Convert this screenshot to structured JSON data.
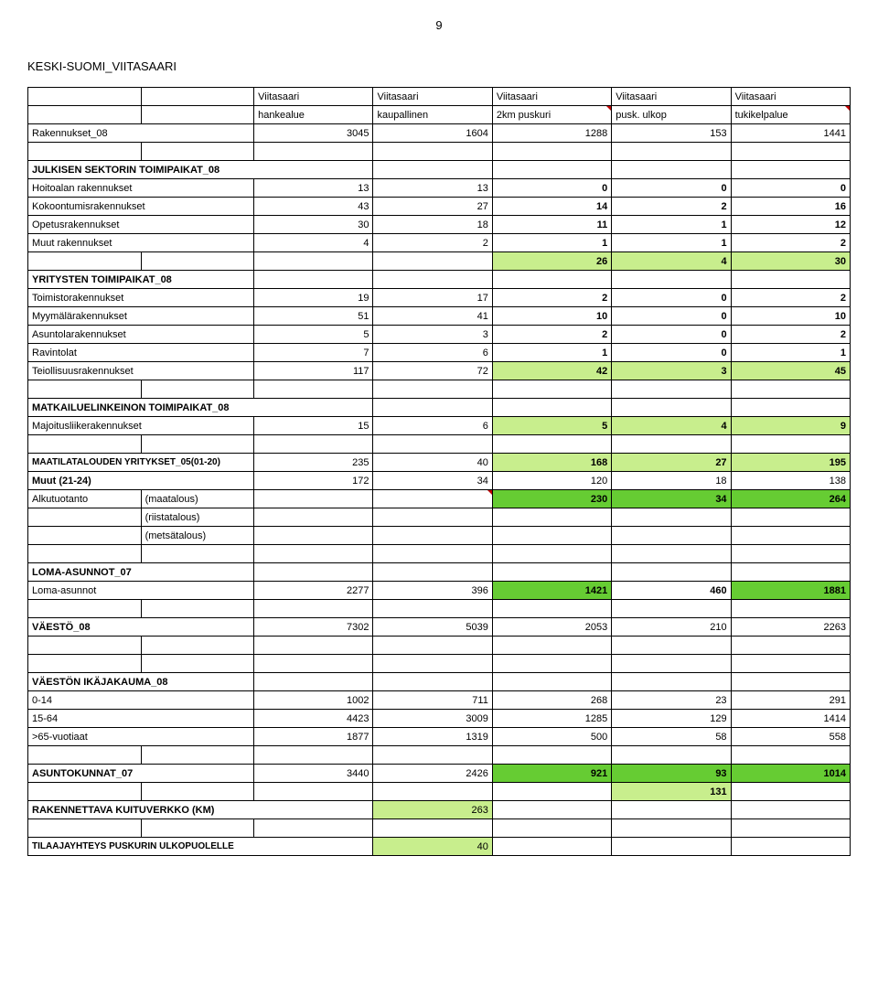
{
  "page_number": "9",
  "title": "KESKI-SUOMI_VIITASAARI",
  "headers": {
    "col3": "Viitasaari",
    "col4": "Viitasaari",
    "col5": "Viitasaari",
    "col6": "Viitasaari",
    "col7": "Viitasaari",
    "sub3": "hankealue",
    "sub4": "kaupallinen",
    "sub5": "2km puskuri",
    "sub6": "pusk. ulkop",
    "sub7": "tukikelpalue"
  },
  "rows": {
    "rakennukset08": {
      "label": "Rakennukset_08",
      "v": [
        "3045",
        "1604",
        "1288",
        "153",
        "1441"
      ]
    },
    "julkisen": "JULKISEN SEKTORIN TOIMIPAIKAT_08",
    "hoitoalan": {
      "label": "Hoitoalan rakennukset",
      "v": [
        "13",
        "13",
        "0",
        "0",
        "0"
      ]
    },
    "kokoontumis": {
      "label": "Kokoontumisrakennukset",
      "v": [
        "43",
        "27",
        "14",
        "2",
        "16"
      ]
    },
    "opetus": {
      "label": "Opetusrakennukset",
      "v": [
        "30",
        "18",
        "11",
        "1",
        "12"
      ]
    },
    "muutrak": {
      "label": "Muut rakennukset",
      "v": [
        "4",
        "2",
        "1",
        "1",
        "2"
      ]
    },
    "subtotal1": {
      "v": [
        "",
        "",
        "26",
        "4",
        "30"
      ]
    },
    "yritysten": "YRITYSTEN TOIMIPAIKAT_08",
    "toimisto": {
      "label": "Toimistorakennukset",
      "v": [
        "19",
        "17",
        "2",
        "0",
        "2"
      ]
    },
    "myymala": {
      "label": "Myymälärakennukset",
      "v": [
        "51",
        "41",
        "10",
        "0",
        "10"
      ]
    },
    "asuntola": {
      "label": "Asuntolarakennukset",
      "v": [
        "5",
        "3",
        "2",
        "0",
        "2"
      ]
    },
    "ravintolat": {
      "label": "Ravintolat",
      "v": [
        "7",
        "6",
        "1",
        "0",
        "1"
      ]
    },
    "teiollisuus": {
      "label": "Teiollisuusrakennukset",
      "v": [
        "117",
        "72",
        "42",
        "3",
        "45"
      ]
    },
    "matkailu": "MATKAILUELINKEINON TOIMIPAIKAT_08",
    "majoitus": {
      "label": "Majoitusliikerakennukset",
      "v": [
        "15",
        "6",
        "5",
        "4",
        "9"
      ]
    },
    "maatila": {
      "label": "MAATILATALOUDEN YRITYKSET_05(01-20)",
      "v": [
        "235",
        "40",
        "168",
        "27",
        "195"
      ]
    },
    "muut2124": {
      "label": "Muut (21-24)",
      "v": [
        "172",
        "34",
        "120",
        "18",
        "138"
      ]
    },
    "alkutuotanto": {
      "label": "Alkutuotanto",
      "sub": "(maatalous)",
      "v": [
        "",
        "",
        "230",
        "34",
        "264"
      ]
    },
    "riista": "(riistatalous)",
    "metsa": "(metsätalous)",
    "lomaasunnot07": "LOMA-ASUNNOT_07",
    "lomaasunnot": {
      "label": "Loma-asunnot",
      "v": [
        "2277",
        "396",
        "1421",
        "460",
        "1881"
      ]
    },
    "vaesto08": {
      "label": "VÄESTÖ_08",
      "v": [
        "7302",
        "5039",
        "2053",
        "210",
        "2263"
      ]
    },
    "ikajakauma": "VÄESTÖN IKÄJAKAUMA_08",
    "a0_14": {
      "label": "0-14",
      "v": [
        "1002",
        "711",
        "268",
        "23",
        "291"
      ]
    },
    "a15_64": {
      "label": "15-64",
      "v": [
        "4423",
        "3009",
        "1285",
        "129",
        "1414"
      ]
    },
    "a65": {
      "label": ">65-vuotiaat",
      "v": [
        "1877",
        "1319",
        "500",
        "58",
        "558"
      ]
    },
    "asuntokunnat": {
      "label": "ASUNTOKUNNAT_07",
      "v": [
        "3440",
        "2426",
        "921",
        "93",
        "1014"
      ]
    },
    "val131": "131",
    "rakennettava": {
      "label": "RAKENNETTAVA KUITUVERKKO (KM)",
      "val": "263"
    },
    "tilaaja": {
      "label": "TILAAJAYHTEYS PUSKURIN ULKOPUOLELLE",
      "val": "40"
    }
  },
  "colors": {
    "green_light": "#c8ee8d",
    "green_dark": "#66cc33",
    "border": "#000000",
    "text": "#000000",
    "bg": "#ffffff",
    "mark": "#c00000"
  }
}
